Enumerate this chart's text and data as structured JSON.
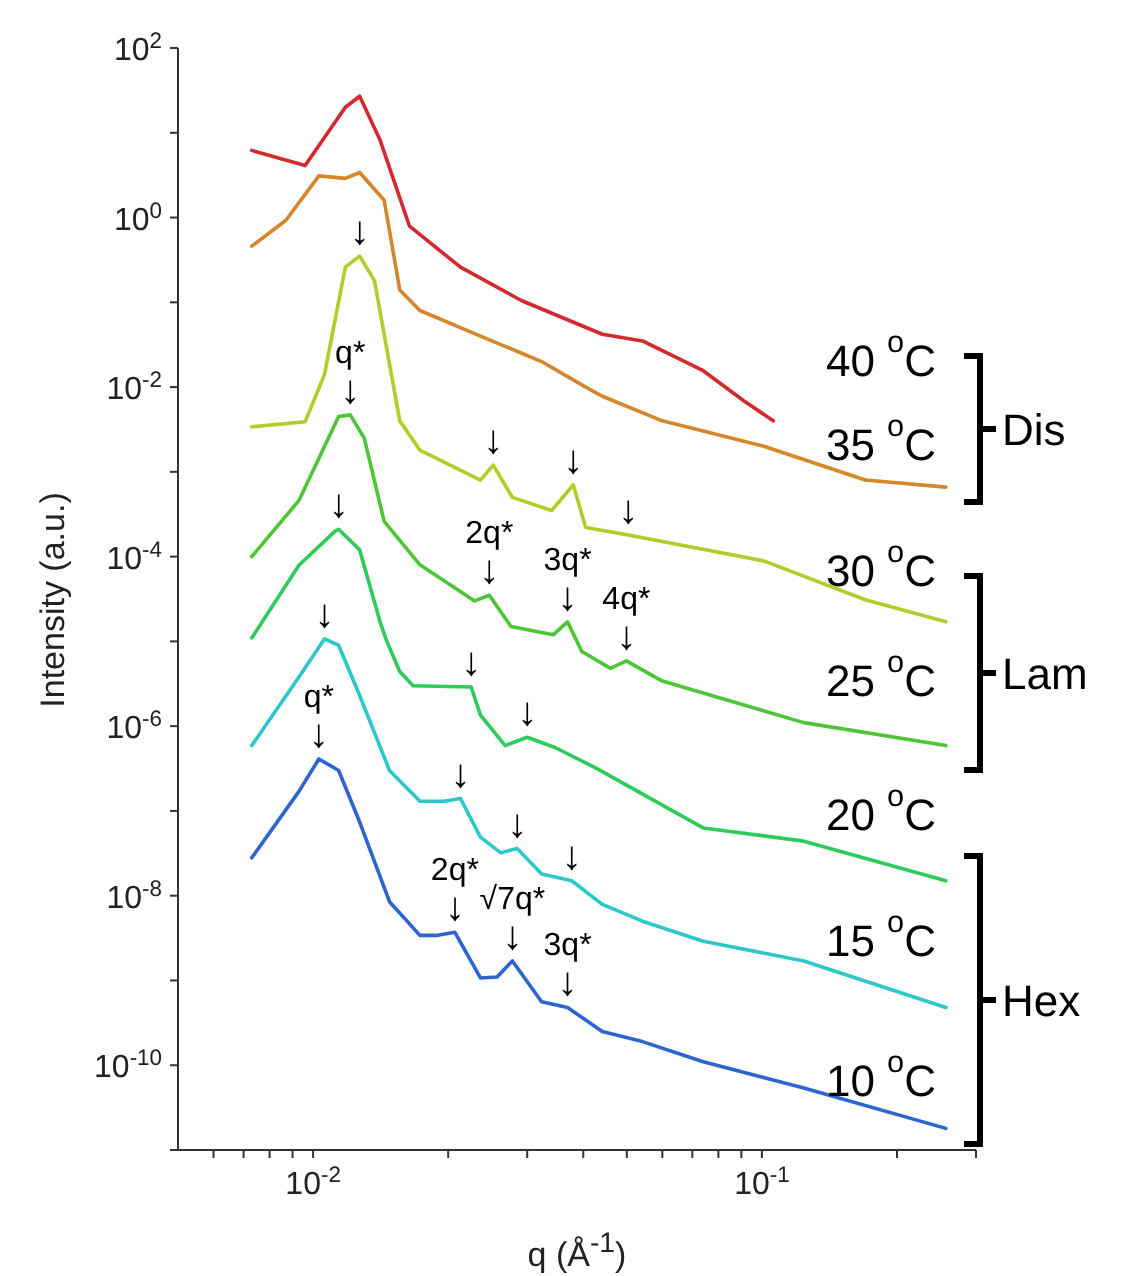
{
  "chart_data": {
    "type": "line",
    "xlabel": "q (Å$^{-1}$)",
    "ylabel": "Intensity (a.u.)",
    "log": "xy",
    "xlim": [
      0.005,
      0.3
    ],
    "ylim": [
      1e-11,
      100
    ],
    "xticks": [
      {
        "value": 0.006,
        "label": null
      },
      {
        "value": 0.007,
        "label": null
      },
      {
        "value": 0.008,
        "label": null
      },
      {
        "value": 0.009,
        "label": null
      },
      {
        "value": 0.01,
        "label": "10$^{-2}$"
      },
      {
        "value": 0.02,
        "label": null
      },
      {
        "value": 0.03,
        "label": null
      },
      {
        "value": 0.04,
        "label": null
      },
      {
        "value": 0.05,
        "label": null
      },
      {
        "value": 0.06,
        "label": null
      },
      {
        "value": 0.07,
        "label": null
      },
      {
        "value": 0.08,
        "label": null
      },
      {
        "value": 0.09,
        "label": null
      },
      {
        "value": 0.1,
        "label": "10$^{-1}$"
      },
      {
        "value": 0.2,
        "label": null
      },
      {
        "value": 0.3,
        "label": null
      }
    ],
    "yticks": [
      {
        "value": 1e-11,
        "label": null
      },
      {
        "value": 1e-10,
        "label": "10$^{-10}$"
      },
      {
        "value": 1e-09,
        "label": null
      },
      {
        "value": 1e-08,
        "label": "10$^{-8}$"
      },
      {
        "value": 1e-07,
        "label": null
      },
      {
        "value": 1e-06,
        "label": "10$^{-6}$"
      },
      {
        "value": 1e-05,
        "label": null
      },
      {
        "value": 0.0001,
        "label": "10$^{-4}$"
      },
      {
        "value": 0.001,
        "label": null
      },
      {
        "value": 0.01,
        "label": "10$^{-2}$"
      },
      {
        "value": 0.1,
        "label": null
      },
      {
        "value": 1,
        "label": "10$^{0}$"
      },
      {
        "value": 10,
        "label": null
      },
      {
        "value": 100,
        "label": "10$^{2}$"
      }
    ],
    "series": [
      {
        "name": "40 $^{o}$C",
        "color": "#d3282e",
        "x": [
          0.0073,
          0.0096,
          0.0118,
          0.0127,
          0.0141,
          0.0164,
          0.0213,
          0.0291,
          0.0441,
          0.0542,
          0.074,
          0.0911,
          0.106
        ],
        "values": [
          6.2,
          4.1,
          20,
          27,
          8.2,
          0.79,
          0.26,
          0.105,
          0.042,
          0.035,
          0.0156,
          0.0069,
          0.004
        ]
      },
      {
        "name": "35 $^{o}$C",
        "color": "#d4862a",
        "x": [
          0.0073,
          0.0087,
          0.0103,
          0.0118,
          0.0127,
          0.0144,
          0.0156,
          0.0173,
          0.0236,
          0.0323,
          0.0405,
          0.0441,
          0.06,
          0.101,
          0.17,
          0.257
        ],
        "values": [
          0.46,
          0.93,
          3.1,
          2.9,
          3.4,
          1.6,
          0.14,
          0.08,
          0.04,
          0.02,
          0.01,
          0.0078,
          0.004,
          0.002,
          0.0008,
          0.00066
        ]
      },
      {
        "name": "30 $^{o}$C",
        "color": "#b3cc2a",
        "x": [
          0.0073,
          0.0096,
          0.0106,
          0.0118,
          0.0127,
          0.0137,
          0.0156,
          0.0173,
          0.0236,
          0.0252,
          0.0278,
          0.034,
          0.038,
          0.0405,
          0.0504,
          0.101,
          0.17,
          0.257
        ],
        "values": [
          0.0034,
          0.0039,
          0.014,
          0.26,
          0.35,
          0.18,
          0.004,
          0.0018,
          0.0008,
          0.0012,
          0.0005,
          0.00035,
          0.0007,
          0.00022,
          0.00018,
          8.9e-05,
          3.1e-05,
          1.7e-05
        ]
      },
      {
        "name": "25 $^{o}$C",
        "color": "#4cc636",
        "x": [
          0.0073,
          0.0093,
          0.0114,
          0.0121,
          0.013,
          0.0144,
          0.0173,
          0.0229,
          0.0247,
          0.0276,
          0.0343,
          0.0369,
          0.0397,
          0.046,
          0.0499,
          0.06,
          0.124,
          0.257
        ],
        "values": [
          0.0001,
          0.00046,
          0.0045,
          0.0047,
          0.0025,
          0.00026,
          8e-05,
          3e-05,
          3.5e-05,
          1.5e-05,
          1.2e-05,
          1.7e-05,
          7.6e-06,
          4.8e-06,
          5.9e-06,
          3.4e-06,
          1.1e-06,
          5.9e-07
        ]
      },
      {
        "name": "20 $^{o}$C",
        "color": "#2ecb5a",
        "x": [
          0.0073,
          0.0093,
          0.0112,
          0.0114,
          0.0127,
          0.0141,
          0.0146,
          0.0156,
          0.0167,
          0.0225,
          0.0236,
          0.0268,
          0.03,
          0.0346,
          0.0427,
          0.074,
          0.124,
          0.257
        ],
        "values": [
          1.1e-05,
          7.9e-05,
          0.0002,
          0.00021,
          0.00012,
          1.7e-05,
          1e-05,
          4.4e-06,
          3e-06,
          2.9e-06,
          1.35e-06,
          5.9e-07,
          7.4e-07,
          5.6e-07,
          3.2e-07,
          6.3e-08,
          4.4e-08,
          1.5e-08
        ]
      },
      {
        "name": "15 $^{o}$C",
        "color": "#2cc8c8",
        "x": [
          0.0073,
          0.0093,
          0.0106,
          0.0114,
          0.0127,
          0.0148,
          0.0173,
          0.0196,
          0.0213,
          0.0236,
          0.0262,
          0.0285,
          0.0323,
          0.0377,
          0.0441,
          0.0542,
          0.074,
          0.124,
          0.257
        ],
        "values": [
          5.9e-07,
          3.8e-06,
          1.07e-05,
          9e-06,
          2.3e-06,
          3e-07,
          1.3e-07,
          1.3e-07,
          1.4e-07,
          4.9e-08,
          3.2e-08,
          3.6e-08,
          1.8e-08,
          1.5e-08,
          7.9e-09,
          5e-09,
          2.9e-09,
          1.7e-09,
          4.8e-10
        ]
      },
      {
        "name": "10 $^{o}$C",
        "color": "#2c65cf",
        "x": [
          0.0073,
          0.0093,
          0.0103,
          0.0114,
          0.0127,
          0.0148,
          0.0173,
          0.0188,
          0.0207,
          0.0236,
          0.0257,
          0.0278,
          0.0323,
          0.0369,
          0.0441,
          0.0542,
          0.074,
          0.124,
          0.257
        ],
        "values": [
          2.8e-08,
          1.7e-07,
          4.1e-07,
          3e-07,
          7.4e-08,
          8.5e-09,
          3.4e-09,
          3.4e-09,
          3.7e-09,
          1.07e-09,
          1.1e-09,
          1.7e-09,
          5.6e-10,
          4.8e-10,
          2.5e-10,
          1.9e-10,
          1.1e-10,
          5.4e-11,
          1.8e-11
        ]
      }
    ],
    "annotations": [
      "Dis",
      "Lam",
      "Hex",
      {
        "text": "↓",
        "x": 0.0127,
        "y": 0.35
      },
      {
        "text": "↓",
        "x": 0.0252,
        "y": 0.0012
      },
      {
        "text": "↓",
        "x": 0.038,
        "y": 0.0007
      },
      {
        "text": "↓",
        "x": 0.0504,
        "y": 0.00018
      },
      {
        "text": "q*",
        "x": 0.0121,
        "y": 0.0047
      },
      {
        "text": "↓",
        "x": 0.0121,
        "y": 0.0047
      },
      {
        "text": "2q*",
        "x": 0.0247,
        "y": 3.5e-05
      },
      {
        "text": "↓",
        "x": 0.0247,
        "y": 3.5e-05
      },
      {
        "text": "3q*",
        "x": 0.0369,
        "y": 1.7e-05
      },
      {
        "text": "↓",
        "x": 0.0369,
        "y": 1.7e-05
      },
      {
        "text": "4q*",
        "x": 0.0499,
        "y": 5.9e-06
      },
      {
        "text": "↓",
        "x": 0.0499,
        "y": 5.9e-06
      },
      {
        "text": "↓",
        "x": 0.0114,
        "y": 0.00021
      },
      {
        "text": "↓",
        "x": 0.0225,
        "y": 2.9e-06
      },
      {
        "text": "↓",
        "x": 0.03,
        "y": 7.4e-07
      },
      {
        "text": "↓",
        "x": 0.0106,
        "y": 1.07e-05
      },
      {
        "text": "↓",
        "x": 0.0213,
        "y": 1.4e-07
      },
      {
        "text": "↓",
        "x": 0.0285,
        "y": 3.6e-08
      },
      {
        "text": "↓",
        "x": 0.0377,
        "y": 1.5e-08
      },
      {
        "text": "q*",
        "x": 0.0103,
        "y": 4.1e-07
      },
      {
        "text": "↓",
        "x": 0.0103,
        "y": 4.1e-07
      },
      {
        "text": "2q*",
        "x": 0.0207,
        "y": 3.7e-09
      },
      {
        "text": "↓",
        "x": 0.0207,
        "y": 3.7e-09
      },
      {
        "text": "√7q*",
        "x": 0.0278,
        "y": 1.7e-09
      },
      {
        "text": "↓",
        "x": 0.0278,
        "y": 1.7e-09
      },
      {
        "text": "3q*",
        "x": 0.0369,
        "y": 4.8e-10
      },
      {
        "text": "↓",
        "x": 0.0369,
        "y": 4.8e-10
      }
    ]
  }
}
